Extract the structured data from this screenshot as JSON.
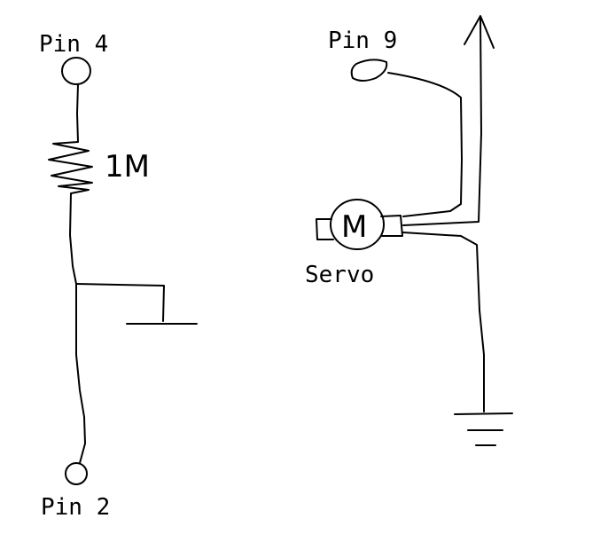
{
  "labels": {
    "pin_top_left": "Pin 4",
    "pin_bottom_left": "Pin 2",
    "pin_top_right": "Pin 9",
    "resistor": "1M",
    "motor_symbol": "M",
    "servo": "Servo"
  },
  "colors": {
    "ink": "#000000",
    "background": "#ffffff"
  }
}
